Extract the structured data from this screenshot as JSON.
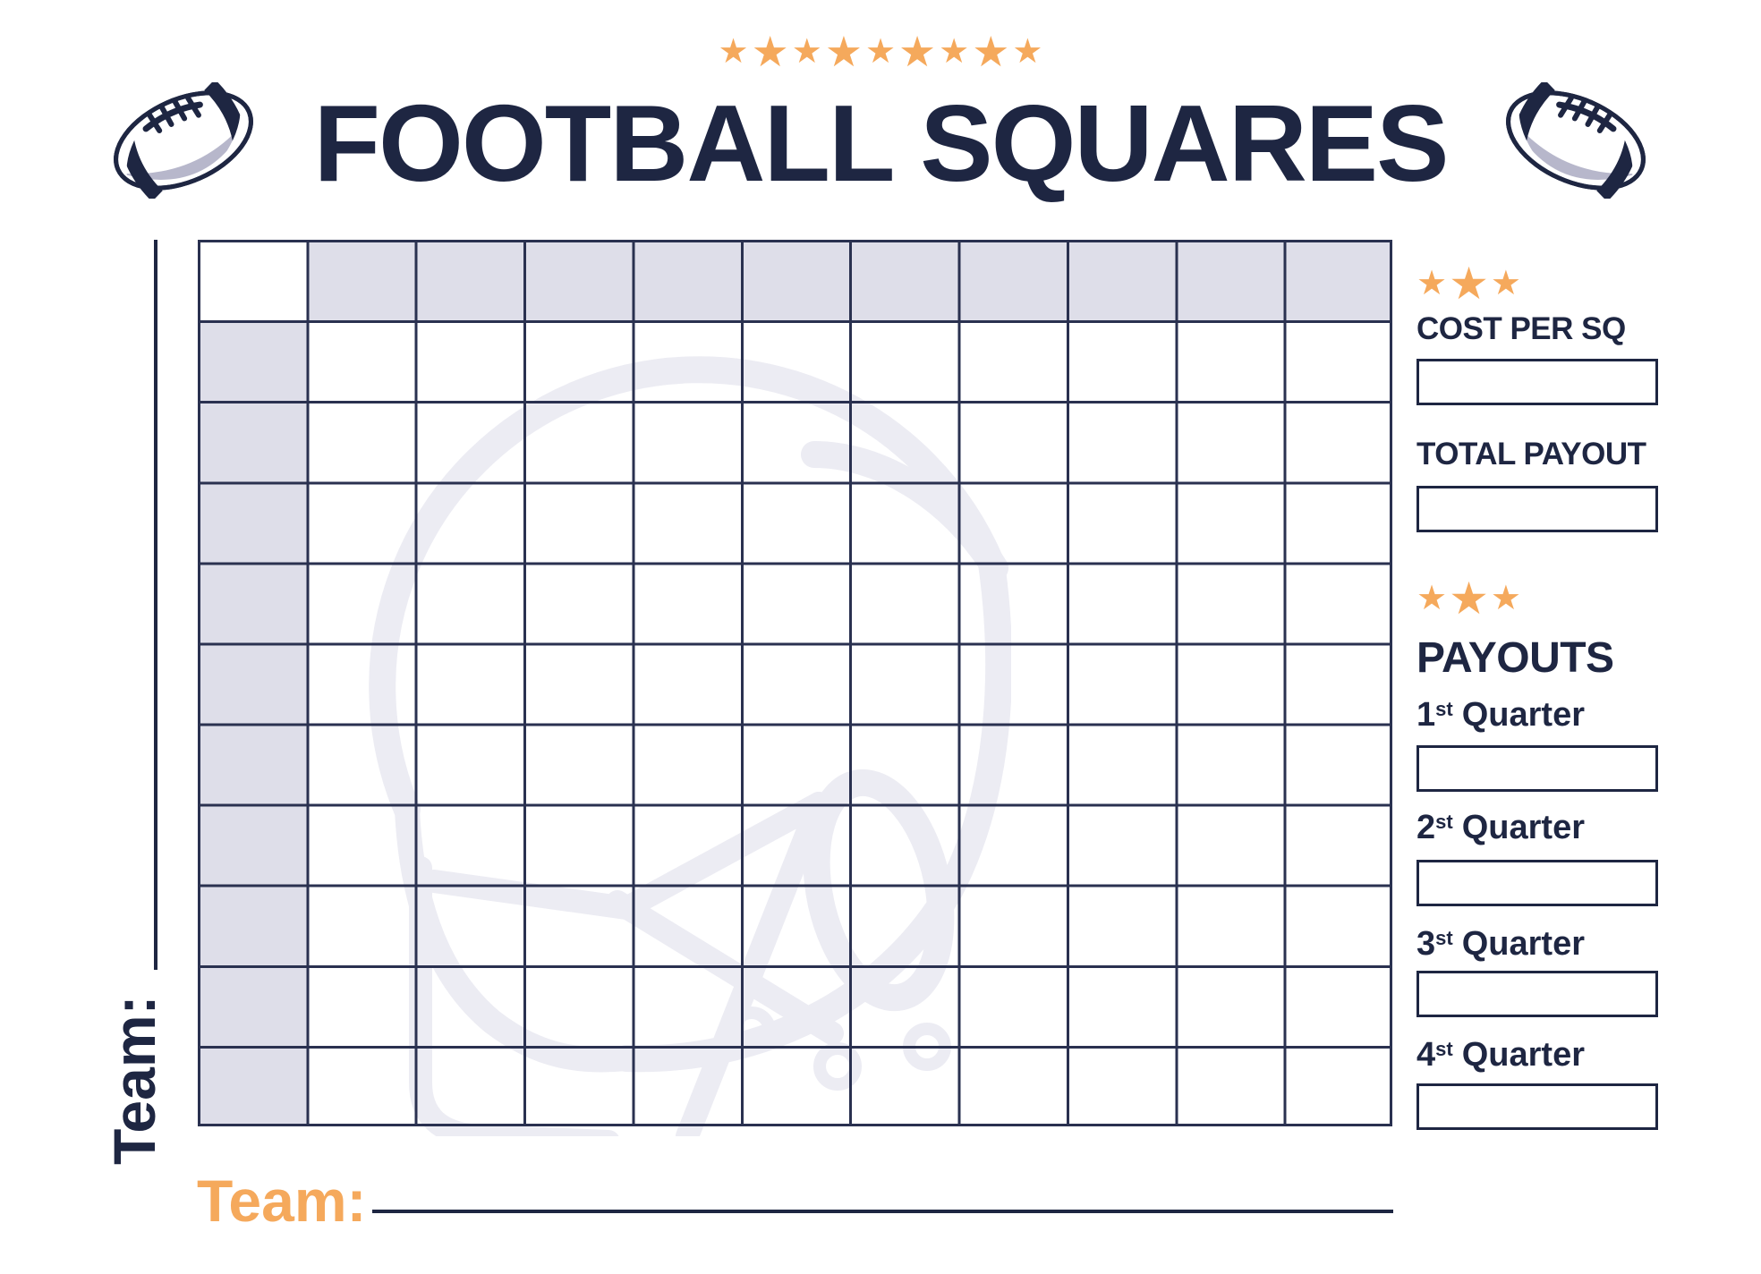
{
  "header": {
    "title": "FOOTBALL SQUARES",
    "top_stars_pattern": [
      "small",
      "big",
      "small",
      "big",
      "small",
      "big",
      "small",
      "big",
      "small"
    ]
  },
  "icons": {
    "star_glyph": "★",
    "left_icon": "football-icon",
    "right_icon": "football-icon",
    "watermark": "football-helmet-watermark"
  },
  "grid": {
    "rows": 11,
    "cols": 11,
    "header_row_shaded": true,
    "header_col_shaded": true,
    "cells_text": ""
  },
  "teams": {
    "left_label": "Team:",
    "left_value": "",
    "bottom_label": "Team:",
    "bottom_value": ""
  },
  "sidebar": {
    "stars_group_pattern": [
      "small",
      "big",
      "small"
    ],
    "cost_per_sq": {
      "label": "COST PER SQ",
      "value": ""
    },
    "total_payout": {
      "label": "TOTAL PAYOUT",
      "value": ""
    },
    "payouts": {
      "title": "PAYOUTS",
      "quarters": [
        {
          "number": "1",
          "ordinal": "st",
          "word": "Quarter",
          "value": ""
        },
        {
          "number": "2",
          "ordinal": "st",
          "word": "Quarter",
          "value": ""
        },
        {
          "number": "3",
          "ordinal": "st",
          "word": "Quarter",
          "value": ""
        },
        {
          "number": "4",
          "ordinal": "st",
          "word": "Quarter",
          "value": ""
        }
      ]
    }
  },
  "colors": {
    "navy": "#1E2642",
    "grid_line": "#2A3150",
    "orange": "#F5A95C",
    "cell_shade": "#DEDEE9",
    "watermark": "#ECECF3",
    "football_shade": "#B7B7CB",
    "paper": "#FFFFFF"
  }
}
